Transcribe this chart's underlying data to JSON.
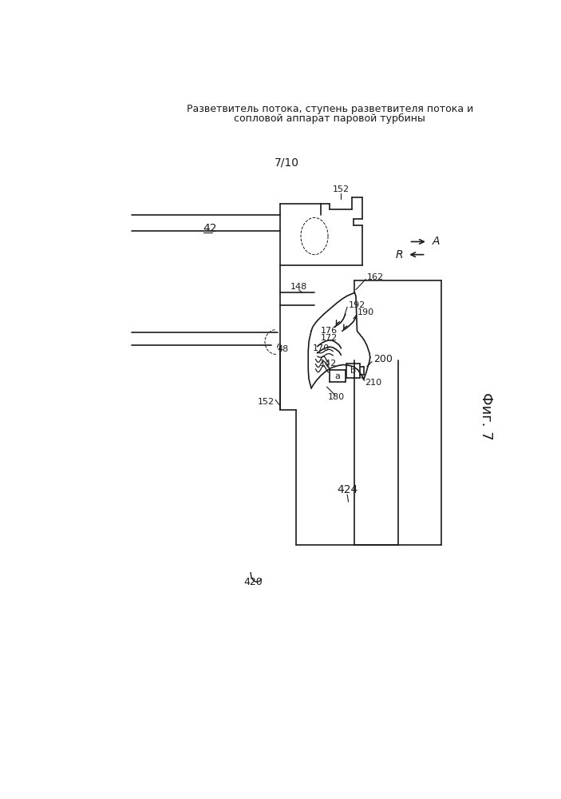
{
  "title_line1": "Разветвитель потока, ступень разветвителя потока и",
  "title_line2": "сопловой аппарат паровой турбины",
  "page_label": "7/10",
  "fig_label": "Фиг. 7",
  "bg": "#ffffff",
  "lc": "#1a1a1a",
  "labels": {
    "152_top": "152",
    "42": "42",
    "148": "148",
    "162": "162",
    "192": "192",
    "190": "190",
    "176": "176",
    "172": "172",
    "170": "170",
    "142": "142",
    "a": "a",
    "b": "b",
    "200": "200",
    "210": "210",
    "180": "180",
    "48": "48",
    "152_bot": "152",
    "424": "424",
    "420": "420",
    "A": "A",
    "R": "R"
  }
}
